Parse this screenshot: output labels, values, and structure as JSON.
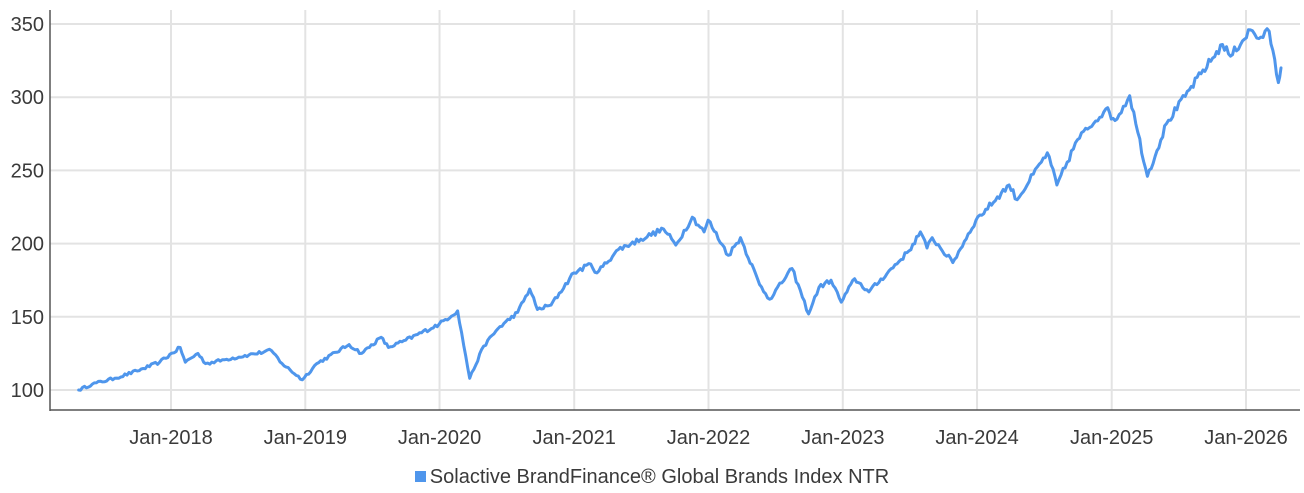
{
  "chart_data": {
    "type": "line",
    "title": "",
    "xlabel": "",
    "ylabel": "",
    "x_ticks": [
      "Jan-2018",
      "Jan-2019",
      "Jan-2020",
      "Jan-2021",
      "Jan-2022",
      "Jan-2023",
      "Jan-2024",
      "Jan-2025",
      "Jan-2026"
    ],
    "y_ticks": [
      100,
      150,
      200,
      250,
      300,
      350
    ],
    "ylim": [
      100,
      350
    ],
    "xlim": [
      "2017-04-21",
      "2026-04-10"
    ],
    "grid": true,
    "legend_position": "bottom-center",
    "series": [
      {
        "name": "Solactive BrandFinance® Global Brands Index NTR",
        "color": "#4f96ec",
        "points": [
          [
            "2017-04-25",
            100
          ],
          [
            "2017-06-01",
            104
          ],
          [
            "2017-08-01",
            108
          ],
          [
            "2017-10-01",
            113
          ],
          [
            "2017-12-01",
            119
          ],
          [
            "2018-01-26",
            129
          ],
          [
            "2018-02-09",
            119
          ],
          [
            "2018-03-15",
            125
          ],
          [
            "2018-04-05",
            118
          ],
          [
            "2018-06-01",
            121
          ],
          [
            "2018-08-01",
            124
          ],
          [
            "2018-10-01",
            127
          ],
          [
            "2018-10-30",
            118
          ],
          [
            "2018-12-24",
            107
          ],
          [
            "2019-02-01",
            118
          ],
          [
            "2019-04-30",
            131
          ],
          [
            "2019-06-03",
            125
          ],
          [
            "2019-07-26",
            136
          ],
          [
            "2019-08-15",
            129
          ],
          [
            "2019-10-01",
            134
          ],
          [
            "2019-12-31",
            145
          ],
          [
            "2020-02-19",
            154
          ],
          [
            "2020-03-23",
            108
          ],
          [
            "2020-04-30",
            130
          ],
          [
            "2020-06-08",
            142
          ],
          [
            "2020-07-31",
            153
          ],
          [
            "2020-09-02",
            169
          ],
          [
            "2020-09-23",
            155
          ],
          [
            "2020-10-30",
            158
          ],
          [
            "2020-12-31",
            180
          ],
          [
            "2021-02-15",
            186
          ],
          [
            "2021-03-04",
            180
          ],
          [
            "2021-05-01",
            196
          ],
          [
            "2021-07-01",
            203
          ],
          [
            "2021-09-01",
            210
          ],
          [
            "2021-10-04",
            199
          ],
          [
            "2021-11-18",
            218
          ],
          [
            "2021-12-20",
            208
          ],
          [
            "2021-12-31",
            216
          ],
          [
            "2022-02-24",
            192
          ],
          [
            "2022-03-29",
            204
          ],
          [
            "2022-05-20",
            172
          ],
          [
            "2022-06-16",
            162
          ],
          [
            "2022-08-16",
            183
          ],
          [
            "2022-09-30",
            152
          ],
          [
            "2022-10-28",
            170
          ],
          [
            "2022-11-30",
            175
          ],
          [
            "2022-12-28",
            160
          ],
          [
            "2023-02-02",
            176
          ],
          [
            "2023-03-13",
            167
          ],
          [
            "2023-06-30",
            195
          ],
          [
            "2023-07-31",
            208
          ],
          [
            "2023-08-18",
            197
          ],
          [
            "2023-09-01",
            204
          ],
          [
            "2023-10-27",
            187
          ],
          [
            "2023-12-29",
            216
          ],
          [
            "2024-03-28",
            240
          ],
          [
            "2024-04-19",
            230
          ],
          [
            "2024-07-10",
            262
          ],
          [
            "2024-08-05",
            240
          ],
          [
            "2024-09-30",
            271
          ],
          [
            "2024-12-16",
            292
          ],
          [
            "2025-01-10",
            284
          ],
          [
            "2025-02-19",
            301
          ],
          [
            "2025-03-13",
            276
          ],
          [
            "2025-04-08",
            246
          ],
          [
            "2025-05-30",
            282
          ],
          [
            "2025-07-31",
            305
          ],
          [
            "2025-10-29",
            336
          ],
          [
            "2025-11-20",
            328
          ],
          [
            "2026-01-13",
            346
          ],
          [
            "2026-02-05",
            340
          ],
          [
            "2026-03-05",
            345
          ],
          [
            "2026-03-30",
            310
          ],
          [
            "2026-04-06",
            320
          ]
        ]
      }
    ]
  }
}
